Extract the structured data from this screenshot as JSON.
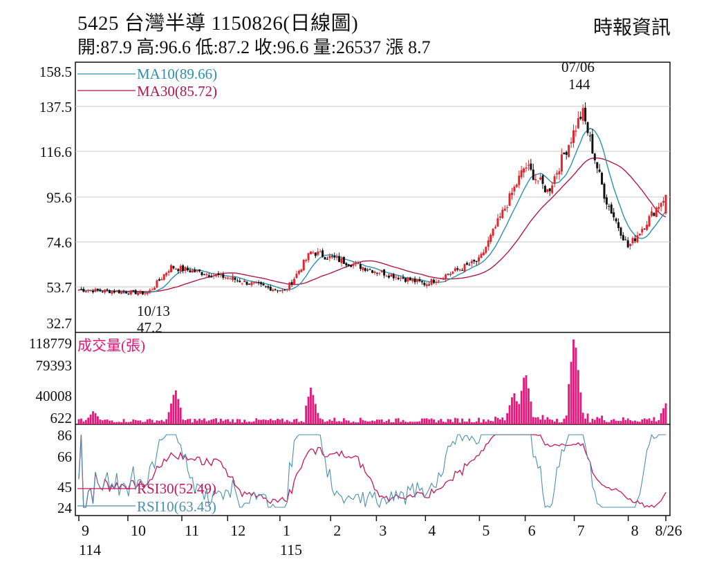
{
  "header": {
    "title": "5425  台灣半導 1150826(日線圖)",
    "stats": "開:87.9 高:96.6 低:87.2 收:96.6 量:26537 漲 8.7",
    "source": "時報資訊"
  },
  "colors": {
    "up": "#e0262e",
    "down": "#111111",
    "ma10": "#2b8fb0",
    "ma30": "#b01848",
    "volume": "#e8157a",
    "rsi30": "#c2185b",
    "rsi10": "#4a8fb0",
    "grid": "#c8c8c8"
  },
  "chart_data": [
    {
      "type": "candlestick",
      "yticks": [
        "158.5",
        "137.5",
        "116.6",
        "95.6",
        "74.6",
        "53.7",
        "32.7"
      ],
      "ylim": [
        32.7,
        158.5
      ],
      "legend": [
        {
          "name": "MA10(89.66)",
          "color": "#2b8fb0"
        },
        {
          "name": "MA30(85.72)",
          "color": "#b01848"
        }
      ],
      "annotations": [
        {
          "date": "07/06",
          "value": "144",
          "label_lines": [
            "07/06",
            "144"
          ]
        },
        {
          "date": "10/13",
          "value": "47.2",
          "label_lines": [
            "10/13",
            "47.2"
          ]
        }
      ],
      "anchor_points": [
        {
          "date": "114/09/01",
          "close": 52
        },
        {
          "date": "114/10/13",
          "close": 50
        },
        {
          "date": "114/10/27",
          "close": 63
        },
        {
          "date": "114/12/01",
          "close": 58
        },
        {
          "date": "115/01/05",
          "close": 51
        },
        {
          "date": "115/01/21",
          "close": 70
        },
        {
          "date": "115/03/02",
          "close": 61
        },
        {
          "date": "115/04/01",
          "close": 55
        },
        {
          "date": "115/05/04",
          "close": 66
        },
        {
          "date": "115/06/01",
          "close": 110
        },
        {
          "date": "115/06/15",
          "close": 98
        },
        {
          "date": "115/07/06",
          "close": 135
        },
        {
          "date": "115/07/20",
          "close": 95
        },
        {
          "date": "115/08/03",
          "close": 72
        },
        {
          "date": "115/08/26",
          "close": 96.6
        }
      ],
      "last_bar": {
        "open": 87.9,
        "high": 96.6,
        "low": 87.2,
        "close": 96.6
      }
    },
    {
      "type": "bar",
      "title": "成交量(張)",
      "yticks": [
        "118779",
        "79393",
        "40008",
        "622"
      ],
      "ylim": [
        622,
        118779
      ],
      "spikes": [
        {
          "date": "114/09/10",
          "value": 17000
        },
        {
          "date": "114/10/30",
          "value": 46000
        },
        {
          "date": "115/01/21",
          "value": 48000
        },
        {
          "date": "115/05/25",
          "value": 42000
        },
        {
          "date": "115/06/01",
          "value": 70000
        },
        {
          "date": "115/07/01",
          "value": 118779
        },
        {
          "date": "115/08/26",
          "value": 26537
        }
      ]
    },
    {
      "type": "line",
      "yticks": [
        "86",
        "66",
        "45",
        "24"
      ],
      "ylim": [
        24,
        86
      ],
      "series": [
        {
          "name": "RSI30(52.49)",
          "color": "#c2185b"
        },
        {
          "name": "RSI10(63.45)",
          "color": "#4a8fb0"
        }
      ]
    }
  ],
  "x_axis": {
    "months": [
      "9",
      "10",
      "11",
      "12",
      "1",
      "2",
      "3",
      "4",
      "5",
      "6",
      "7",
      "8",
      "8/26"
    ],
    "years": [
      "114",
      "115"
    ]
  }
}
